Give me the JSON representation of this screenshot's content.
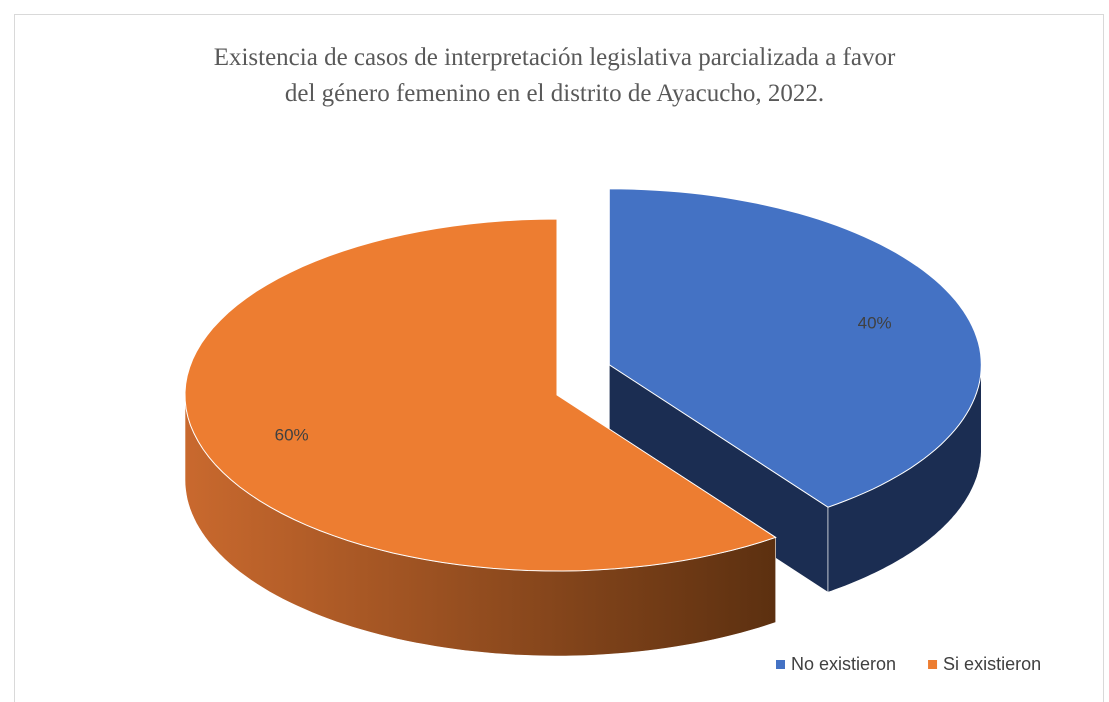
{
  "chart_data": {
    "type": "pie",
    "title": "Existencia de casos de interpretación legislativa parcializada a favor del género femenino en el distrito de Ayacucho, 2022.",
    "categories": [
      "No existieron",
      "Si existieron"
    ],
    "values": [
      40,
      60
    ],
    "value_labels": [
      "40%",
      "60%"
    ],
    "colors": [
      "#4472c4",
      "#ed7d31"
    ],
    "legend": "bottom-right"
  }
}
